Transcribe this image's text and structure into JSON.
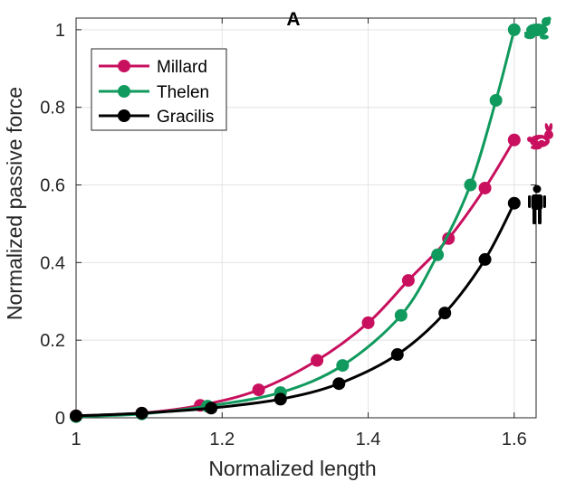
{
  "chart_data": {
    "type": "line",
    "title": "A",
    "xlabel": "Normalized length",
    "ylabel": "Normalized passive force",
    "xlim": [
      1.0,
      1.63
    ],
    "ylim": [
      0,
      1.03
    ],
    "xticks": [
      1.0,
      1.2,
      1.4,
      1.6
    ],
    "xtick_labels": [
      "1",
      "1.2",
      "1.4",
      "1.6"
    ],
    "yticks": [
      0,
      0.2,
      0.4,
      0.6,
      0.8,
      1.0
    ],
    "ytick_labels": [
      "0",
      "0.2",
      "0.4",
      "0.6",
      "0.8",
      "1"
    ],
    "grid": true,
    "legend_position": "top-left",
    "series": [
      {
        "name": "Millard",
        "color": "#c8105e",
        "icon": "rabbit-icon",
        "x": [
          1.0,
          1.09,
          1.17,
          1.25,
          1.33,
          1.4,
          1.455,
          1.51,
          1.56,
          1.6
        ],
        "y": [
          0.005,
          0.012,
          0.032,
          0.072,
          0.148,
          0.245,
          0.354,
          0.462,
          0.592,
          0.716
        ]
      },
      {
        "name": "Thelen",
        "color": "#119a5e",
        "icon": "frog-icon",
        "x": [
          1.0,
          1.09,
          1.18,
          1.28,
          1.365,
          1.445,
          1.495,
          1.54,
          1.575,
          1.6
        ],
        "y": [
          0.003,
          0.01,
          0.03,
          0.065,
          0.135,
          0.264,
          0.42,
          0.6,
          0.818,
          1.0
        ]
      },
      {
        "name": "Gracilis",
        "color": "#000000",
        "icon": "person-icon",
        "x": [
          1.0,
          1.09,
          1.185,
          1.28,
          1.36,
          1.44,
          1.505,
          1.56,
          1.6
        ],
        "y": [
          0.005,
          0.012,
          0.025,
          0.048,
          0.088,
          0.163,
          0.27,
          0.408,
          0.553
        ]
      }
    ]
  }
}
